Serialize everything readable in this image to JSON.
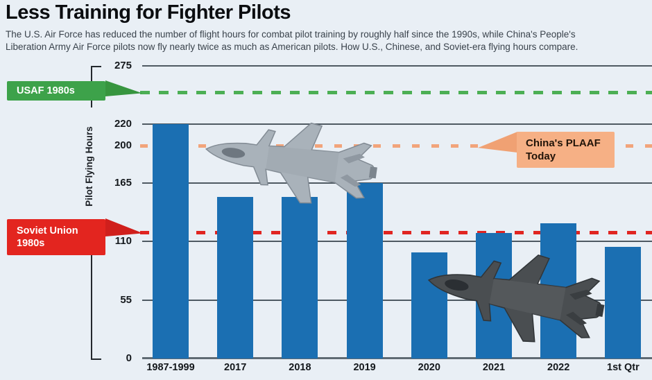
{
  "header": {
    "title": "Less Training for Fighter Pilots",
    "subtitle_line1": "The U.S. Air Force has reduced the number of flight hours for combat pilot training by roughly half since the 1990s, while China's People's",
    "subtitle_line2": "Liberation Army Air Force pilots now fly nearly twice as much as American pilots. How U.S., Chinese, and Soviet-era flying hours compare."
  },
  "chart_data": {
    "type": "bar",
    "title": "Less Training for Fighter Pilots",
    "ylabel": "Pilot Flying Hours",
    "categories": [
      "1987-1999",
      "2017",
      "2018",
      "2019",
      "2020",
      "2021",
      "2022",
      "1st Qtr"
    ],
    "values": [
      220,
      152,
      152,
      165,
      100,
      118,
      127,
      105
    ],
    "yticks": [
      275,
      220,
      200,
      165,
      110,
      55,
      0
    ],
    "gridline_values": [
      275,
      220,
      165,
      110,
      55
    ],
    "ylim": [
      0,
      275
    ],
    "grid": true,
    "bar_color": "#1B6FB2",
    "reference_lines": [
      {
        "id": "usaf",
        "label": "USAF 1980s",
        "value": 250,
        "color": "#4CAF54",
        "dash": [
          14,
          13
        ]
      },
      {
        "id": "plaaf",
        "label": "China's PLAAF Today",
        "value": 200,
        "color": "#F2A47B",
        "dash": [
          11,
          17
        ]
      },
      {
        "id": "soviet",
        "label": "Soviet Union 1980s",
        "value": 118,
        "color": "#E02521",
        "dash": [
          13,
          14
        ]
      }
    ],
    "legend_position": "callouts"
  },
  "callouts": {
    "usaf": {
      "label": "USAF 1980s"
    },
    "soviet": {
      "line1": "Soviet Union",
      "line2": "1980s"
    },
    "plaaf": {
      "line1": "China's PLAAF",
      "line2": "Today"
    }
  },
  "images": {
    "jet_top": "chinese-j20-fighter-jet",
    "jet_bottom": "us-f35-fighter-jet"
  },
  "colors": {
    "background": "#E9EFF5",
    "bar": "#1B6FB2",
    "usaf_green": "#3DA24A",
    "soviet_red": "#E3251F",
    "plaaf_peach": "#F6B085",
    "gridline": "#4E5962",
    "text_dark": "#14181C"
  }
}
